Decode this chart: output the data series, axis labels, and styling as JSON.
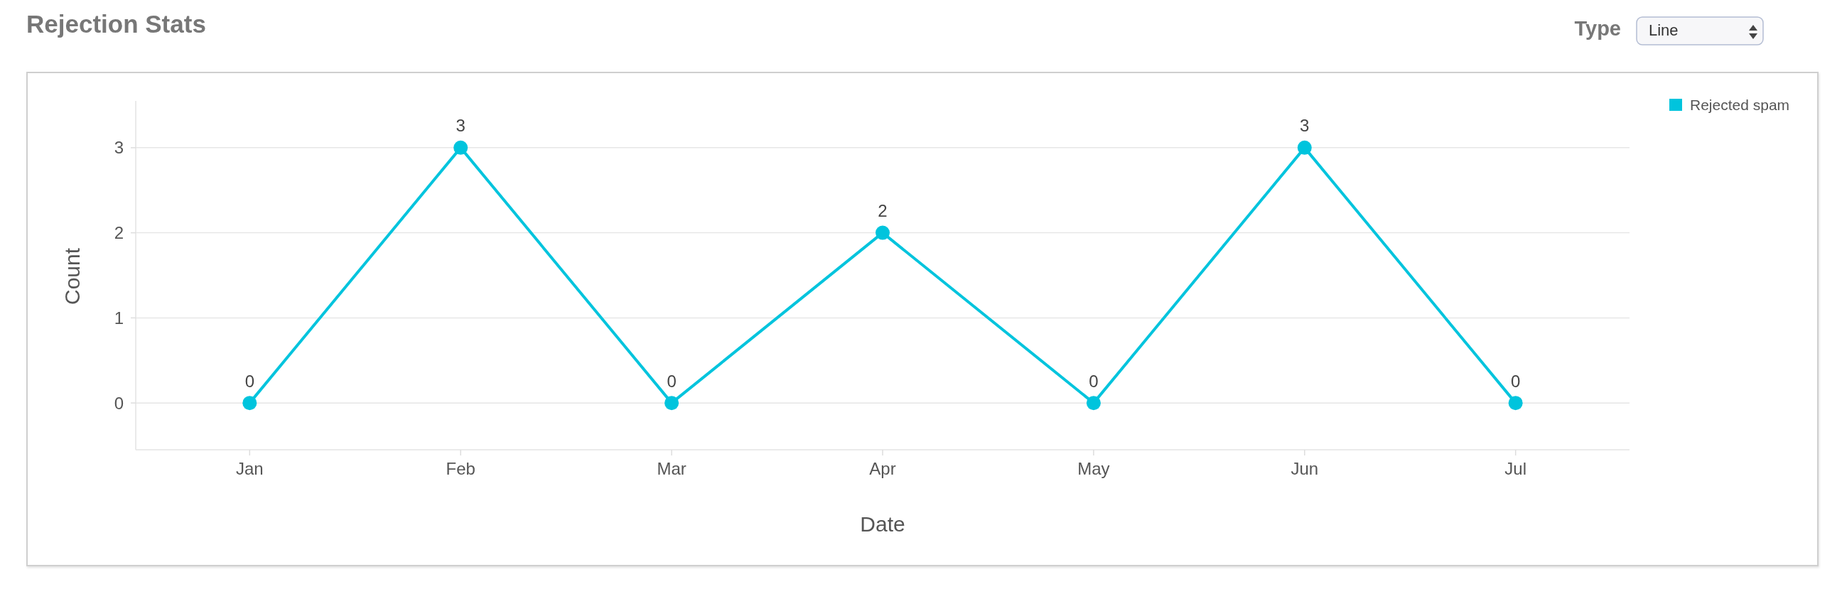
{
  "chart_data": {
    "type": "line",
    "title": "Rejection Stats",
    "xlabel": "Date",
    "ylabel": "Count",
    "categories": [
      "Jan",
      "Feb",
      "Mar",
      "Apr",
      "May",
      "Jun",
      "Jul"
    ],
    "series": [
      {
        "name": "Rejected spam",
        "color": "#00c4dd",
        "values": [
          0,
          3,
          0,
          2,
          0,
          3,
          0
        ]
      }
    ],
    "ylim": [
      -0.55,
      3.55
    ],
    "yticks": [
      0,
      1,
      2,
      3
    ],
    "grid": "y",
    "legend": "top right",
    "marker": "circle",
    "line_style": "solid",
    "data_labels": true,
    "annotations": [
      "Type",
      "Line"
    ]
  }
}
